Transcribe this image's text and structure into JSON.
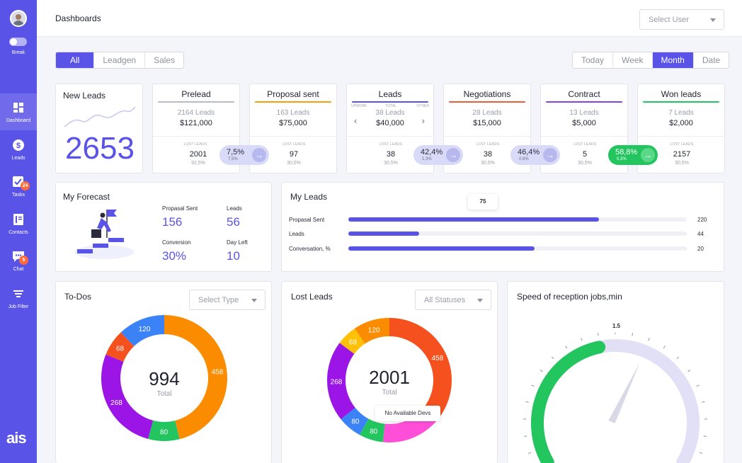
{
  "sidebar": {
    "toggle_label": "Break",
    "items": [
      {
        "label": "Dashboard",
        "icon": "dashboard-icon"
      },
      {
        "label": "Leads",
        "icon": "dollar-icon"
      },
      {
        "label": "Tasks",
        "icon": "checkbox-icon",
        "badge": "24"
      },
      {
        "label": "Contacts",
        "icon": "contacts-icon"
      },
      {
        "label": "Chat",
        "icon": "chat-icon",
        "badge": "5"
      },
      {
        "label": "Job Filter",
        "icon": "filter-icon"
      }
    ],
    "logo": "ais"
  },
  "header": {
    "title": "Dashboards",
    "user_select": "Select User"
  },
  "filter_tabs": [
    "All",
    "Leadgen",
    "Sales"
  ],
  "active_filter": "All",
  "period_tabs": [
    "Today",
    "Week",
    "Month",
    "Date"
  ],
  "active_period": "Month",
  "new_leads": {
    "title": "New Leads",
    "value": "2653"
  },
  "stages": [
    {
      "name": "Prelead",
      "leads": "2164 Leads",
      "amount": "$121,000",
      "lost_title": "LOST LEADS",
      "lost": "2001",
      "lost_pct": "92,5%",
      "color": "#b9bac8"
    },
    {
      "name": "Proposal sent",
      "leads": "163 Leads",
      "amount": "$75,000",
      "lost_title": "LOST LEADS",
      "lost": "97",
      "lost_pct": "30,5%",
      "color": "#f59e0b"
    },
    {
      "name": "Leads",
      "leads": "38 Leads",
      "amount": "$40,000",
      "lost_title": "LOST LEADS",
      "lost": "38",
      "lost_pct": "30,5%",
      "color": "#5a53e8",
      "sub_left": "UPWORK",
      "sub_mid": "TOTAL",
      "sub_right": "OTHER"
    },
    {
      "name": "Negotiations",
      "leads": "28 Leads",
      "amount": "$15,000",
      "lost_title": "LOST LEADS",
      "lost": "38",
      "lost_pct": "30,5%",
      "color": "#ef5a3c"
    },
    {
      "name": "Contract",
      "leads": "13 Leads",
      "amount": "$5,000",
      "lost_title": "LOST LEADS",
      "lost": "5",
      "lost_pct": "30,5%",
      "color": "#8b3fdc"
    },
    {
      "name": "Won leads",
      "leads": "7 Leads",
      "amount": "$2,000",
      "lost_title": "LOST LEADS",
      "lost": "2157",
      "lost_pct": "30,5%",
      "color": "#22c55e"
    }
  ],
  "conversions": [
    {
      "value": "7,5%",
      "sub": "7,5%",
      "green": false
    },
    {
      "value": "42,4%",
      "sub": "1,3%",
      "green": false
    },
    {
      "value": "46,4%",
      "sub": "0,6%",
      "green": false
    },
    {
      "value": "58,8%",
      "sub": "0,3%",
      "green": true
    }
  ],
  "forecast": {
    "title": "My Forecast",
    "stats": [
      {
        "label": "Propasal Sent",
        "value": "156"
      },
      {
        "label": "Leads",
        "value": "56"
      },
      {
        "label": "Conversion",
        "value": "30%"
      },
      {
        "label": "Day Left",
        "value": "10"
      }
    ]
  },
  "my_leads": {
    "title": "My Leads",
    "tooltip": "75",
    "bars": [
      {
        "label": "Propasal Sent",
        "value": "220",
        "fill": 0.74
      },
      {
        "label": "Leads",
        "value": "44",
        "fill": 0.21
      },
      {
        "label": "Conversation, %",
        "value": "20",
        "fill": 0.55
      }
    ]
  },
  "todos": {
    "title": "To-Dos",
    "select": "Select Type",
    "total": "994",
    "total_label": "Total",
    "segments": [
      {
        "label": "458",
        "value": 458,
        "color": "#fb8c00"
      },
      {
        "label": "80",
        "value": 80,
        "color": "#22c55e"
      },
      {
        "label": "268",
        "value": 268,
        "color": "#9b16e6"
      },
      {
        "label": "68",
        "value": 68,
        "color": "#f4511e"
      },
      {
        "label": "120",
        "value": 120,
        "color": "#3b82f6"
      }
    ]
  },
  "lost_leads": {
    "title": "Lost Leads",
    "select": "All Statuses",
    "total": "2001",
    "total_label": "Total",
    "tooltip": "No Available Devs",
    "segments": [
      {
        "label": "458",
        "value": 458,
        "color": "#f4511e"
      },
      {
        "label": "",
        "value": 200,
        "color": "#ff4fd8"
      },
      {
        "label": "80",
        "value": 80,
        "color": "#22c55e"
      },
      {
        "label": "80",
        "value": 80,
        "color": "#3b82f6"
      },
      {
        "label": "268",
        "value": 268,
        "color": "#9b16e6"
      },
      {
        "label": "68",
        "value": 68,
        "color": "#ffc107"
      },
      {
        "label": "120",
        "value": 120,
        "color": "#fb8c00"
      }
    ]
  },
  "speed": {
    "title": "Speed of reception jobs,min",
    "max_label": "1.5",
    "fraction": 0.45
  }
}
